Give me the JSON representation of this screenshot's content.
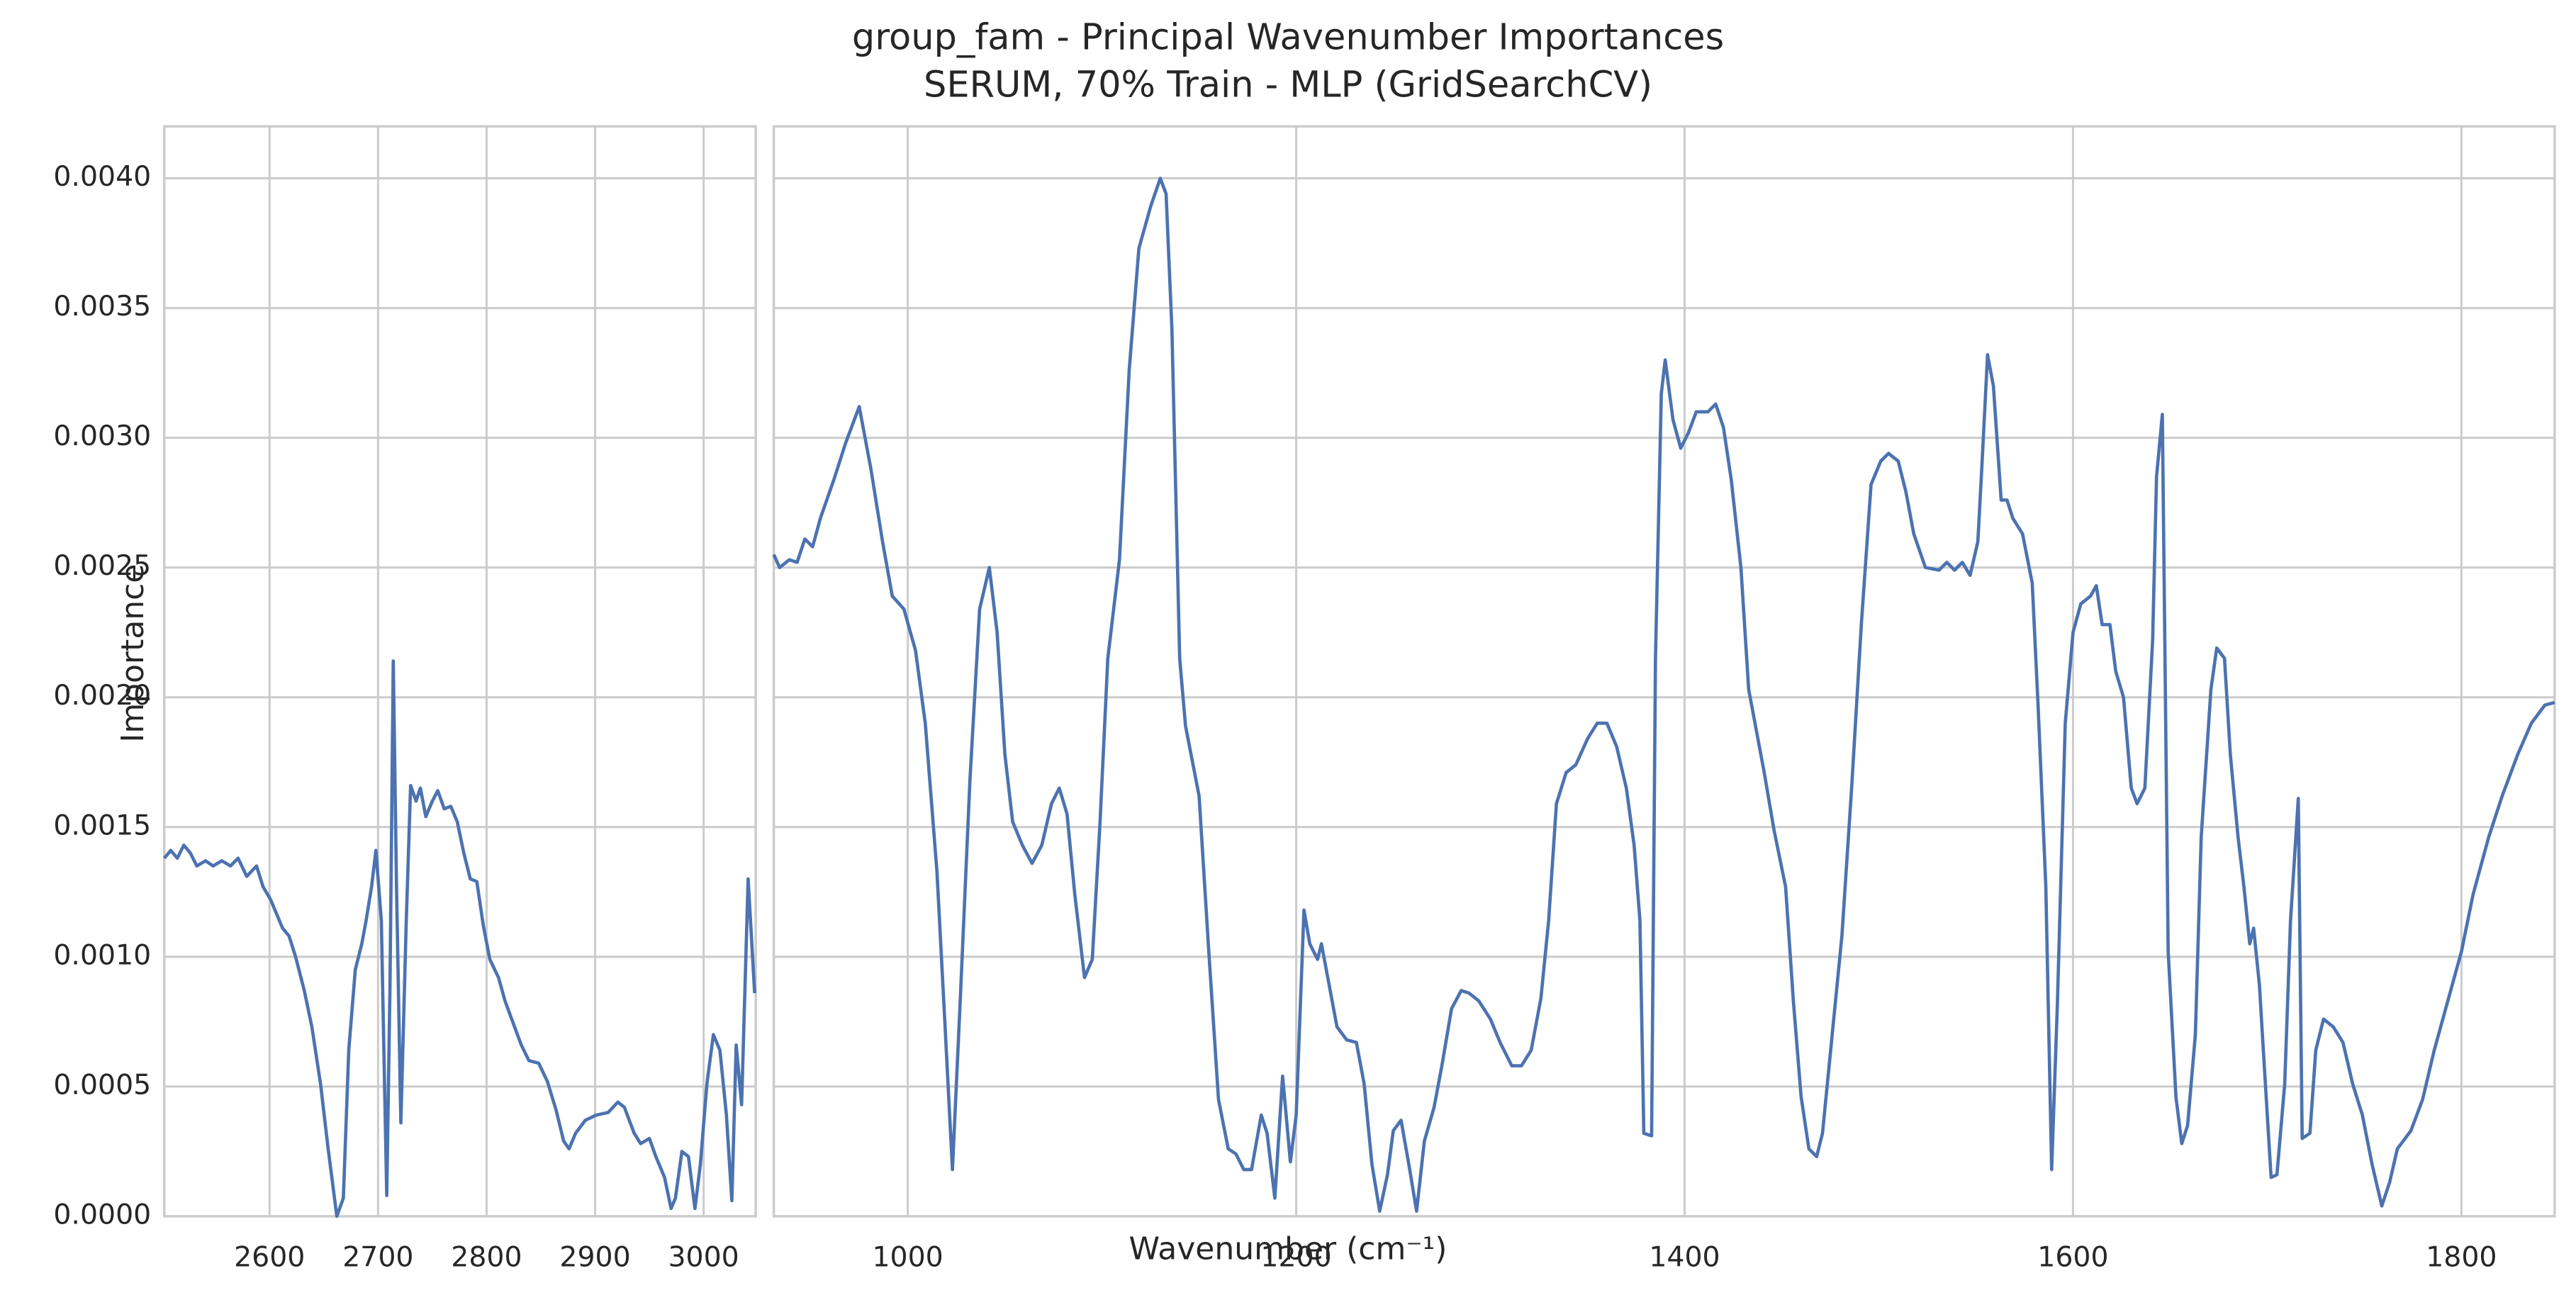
{
  "title": "group_fam - Principal Wavenumber Importances",
  "subtitle": "SERUM, 70% Train - MLP (GridSearchCV)",
  "xlabel": "Wavenumber (cm⁻¹)",
  "ylabel": "Importance",
  "chart_data": [
    {
      "type": "line",
      "color": "#4c72b0",
      "grid": true,
      "xlim": [
        2503,
        3048
      ],
      "xticks": [
        2600,
        2700,
        2800,
        2900,
        3000
      ],
      "ylim": [
        0,
        0.0042
      ],
      "yticks": [
        {
          "value": 0,
          "label": "0.0000"
        },
        {
          "value": 0.0005,
          "label": "0.0005"
        },
        {
          "value": 0.001,
          "label": "0.0010"
        },
        {
          "value": 0.0015,
          "label": "0.0015"
        },
        {
          "value": 0.002,
          "label": "0.0020"
        },
        {
          "value": 0.0025,
          "label": "0.0025"
        },
        {
          "value": 0.003,
          "label": "0.0030"
        },
        {
          "value": 0.0035,
          "label": "0.0035"
        },
        {
          "value": 0.004,
          "label": "0.0040"
        }
      ],
      "x": [
        2503,
        2509,
        2515,
        2521,
        2527,
        2533,
        2541,
        2548,
        2556,
        2564,
        2571,
        2579,
        2588,
        2594,
        2601,
        2612,
        2618,
        2624,
        2632,
        2639,
        2647,
        2654,
        2662,
        2668,
        2673,
        2679,
        2685,
        2689,
        2694,
        2698,
        2703,
        2708,
        2711,
        2714,
        2717,
        2721,
        2726,
        2730,
        2735,
        2739,
        2744,
        2750,
        2755,
        2761,
        2767,
        2773,
        2779,
        2785,
        2791,
        2797,
        2803,
        2811,
        2817,
        2824,
        2832,
        2839,
        2848,
        2856,
        2864,
        2871,
        2876,
        2882,
        2891,
        2901,
        2912,
        2921,
        2927,
        2936,
        2942,
        2950,
        2956,
        2964,
        2970,
        2974,
        2980,
        2986,
        2992,
        2997,
        3003,
        3009,
        3015,
        3021,
        3026,
        3030,
        3035,
        3041,
        3047
      ],
      "values": [
        0.00138,
        0.00141,
        0.00138,
        0.00143,
        0.0014,
        0.00135,
        0.00137,
        0.00135,
        0.00137,
        0.00135,
        0.00138,
        0.00131,
        0.00135,
        0.00127,
        0.00122,
        0.00111,
        0.00108,
        0.001,
        0.00087,
        0.00073,
        0.00051,
        0.00026,
        0,
        7e-05,
        0.00064,
        0.00095,
        0.00105,
        0.00114,
        0.00127,
        0.00141,
        0.00114,
        8e-05,
        0.00089,
        0.00214,
        0.00127,
        0.00036,
        0.00114,
        0.00166,
        0.0016,
        0.00165,
        0.00154,
        0.0016,
        0.00164,
        0.00157,
        0.00158,
        0.00152,
        0.0014,
        0.0013,
        0.00129,
        0.00112,
        0.00099,
        0.00092,
        0.00083,
        0.00075,
        0.00066,
        0.0006,
        0.00059,
        0.00052,
        0.00041,
        0.00029,
        0.00026,
        0.00032,
        0.00037,
        0.00039,
        0.0004,
        0.00044,
        0.00042,
        0.00032,
        0.00028,
        0.0003,
        0.00023,
        0.00015,
        3e-05,
        7e-05,
        0.00025,
        0.00023,
        3e-05,
        0.0002,
        0.00051,
        0.0007,
        0.00064,
        0.00039,
        6e-05,
        0.00066,
        0.00043,
        0.0013,
        0.00086
      ]
    },
    {
      "type": "line",
      "color": "#4c72b0",
      "grid": true,
      "xlim": [
        931,
        1848
      ],
      "xticks": [
        1000,
        1200,
        1400,
        1600,
        1800
      ],
      "ylim": [
        0,
        0.0042
      ],
      "yticks": [
        0,
        0.0005,
        0.001,
        0.0015,
        0.002,
        0.0025,
        0.003,
        0.0035,
        0.004
      ],
      "x": [
        931,
        934,
        939,
        943,
        947,
        951,
        955,
        962,
        968,
        975,
        981,
        987,
        992,
        998,
        1004,
        1009,
        1015,
        1019,
        1023,
        1027,
        1032,
        1037,
        1042,
        1046,
        1050,
        1054,
        1059,
        1064,
        1069,
        1074,
        1078,
        1082,
        1086,
        1091,
        1095,
        1099,
        1103,
        1109,
        1114,
        1119,
        1125,
        1130,
        1133,
        1136,
        1140,
        1143,
        1150,
        1155,
        1160,
        1165,
        1169,
        1173,
        1177,
        1182,
        1185,
        1189,
        1193,
        1197,
        1200,
        1204,
        1207,
        1211,
        1213,
        1217,
        1221,
        1226,
        1231,
        1235,
        1239,
        1243,
        1247,
        1250,
        1254,
        1258,
        1262,
        1266,
        1271,
        1275,
        1280,
        1285,
        1289,
        1294,
        1300,
        1305,
        1311,
        1316,
        1321,
        1326,
        1330,
        1334,
        1339,
        1344,
        1350,
        1355,
        1360,
        1365,
        1370,
        1374,
        1377,
        1379,
        1383,
        1385,
        1388,
        1390,
        1394,
        1398,
        1402,
        1406,
        1412,
        1416,
        1420,
        1424,
        1429,
        1433,
        1437,
        1441,
        1446,
        1452,
        1456,
        1460,
        1464,
        1468,
        1471,
        1476,
        1481,
        1486,
        1491,
        1496,
        1501,
        1505,
        1510,
        1514,
        1518,
        1524,
        1531,
        1535,
        1539,
        1543,
        1547,
        1551,
        1553,
        1556,
        1559,
        1563,
        1566,
        1569,
        1574,
        1579,
        1582,
        1586,
        1589,
        1592,
        1596,
        1600,
        1604,
        1609,
        1612,
        1615,
        1619,
        1622,
        1626,
        1630,
        1633,
        1637,
        1641,
        1643,
        1646,
        1649,
        1653,
        1656,
        1659,
        1663,
        1666,
        1671,
        1674,
        1678,
        1681,
        1685,
        1688,
        1691,
        1693,
        1696,
        1698,
        1702,
        1705,
        1709,
        1712,
        1716,
        1718,
        1722,
        1725,
        1729,
        1734,
        1739,
        1744,
        1749,
        1754,
        1759,
        1763,
        1767,
        1774,
        1780,
        1786,
        1793,
        1800,
        1806,
        1814,
        1821,
        1829,
        1836,
        1843,
        1848
      ],
      "values": [
        0.00255,
        0.0025,
        0.00253,
        0.00252,
        0.00261,
        0.00258,
        0.00269,
        0.00284,
        0.00298,
        0.00312,
        0.00288,
        0.0026,
        0.00239,
        0.00234,
        0.00218,
        0.0019,
        0.00133,
        0.00076,
        0.00018,
        0.00083,
        0.00168,
        0.00234,
        0.0025,
        0.00225,
        0.00178,
        0.00152,
        0.00143,
        0.00136,
        0.00143,
        0.00159,
        0.00165,
        0.00155,
        0.00124,
        0.00092,
        0.00099,
        0.00152,
        0.00215,
        0.00253,
        0.00326,
        0.00373,
        0.00389,
        0.004,
        0.00394,
        0.00342,
        0.00215,
        0.00189,
        0.00162,
        0.00102,
        0.00045,
        0.00026,
        0.00024,
        0.00018,
        0.00018,
        0.00039,
        0.00032,
        7e-05,
        0.00054,
        0.00021,
        0.00039,
        0.00118,
        0.00105,
        0.00099,
        0.00105,
        0.00089,
        0.00073,
        0.00068,
        0.00067,
        0.00051,
        0.0002,
        2e-05,
        0.00016,
        0.00033,
        0.00037,
        0.0002,
        2e-05,
        0.00029,
        0.00042,
        0.00058,
        0.0008,
        0.00087,
        0.00086,
        0.00083,
        0.00076,
        0.00067,
        0.00058,
        0.00058,
        0.00064,
        0.00084,
        0.00114,
        0.00159,
        0.00171,
        0.00174,
        0.00184,
        0.0019,
        0.0019,
        0.00181,
        0.00165,
        0.00143,
        0.00114,
        0.00032,
        0.00031,
        0.00215,
        0.00317,
        0.0033,
        0.00307,
        0.00296,
        0.00302,
        0.0031,
        0.0031,
        0.00313,
        0.00304,
        0.00284,
        0.0025,
        0.00203,
        0.00187,
        0.00171,
        0.00149,
        0.00127,
        0.00083,
        0.00046,
        0.00026,
        0.00023,
        0.00032,
        0.0007,
        0.00108,
        0.00165,
        0.00228,
        0.00282,
        0.00291,
        0.00294,
        0.00291,
        0.00279,
        0.00263,
        0.0025,
        0.00249,
        0.00252,
        0.00249,
        0.00252,
        0.00247,
        0.0026,
        0.00288,
        0.00332,
        0.0032,
        0.00276,
        0.00276,
        0.00269,
        0.00263,
        0.00244,
        0.00197,
        0.00127,
        0.00018,
        0.00083,
        0.0019,
        0.00225,
        0.00236,
        0.00239,
        0.00243,
        0.00228,
        0.00228,
        0.0021,
        0.002,
        0.00165,
        0.00159,
        0.00165,
        0.00222,
        0.00285,
        0.00309,
        0.00102,
        0.00046,
        0.00028,
        0.00035,
        0.0007,
        0.00146,
        0.00203,
        0.00219,
        0.00215,
        0.00178,
        0.00146,
        0.00127,
        0.00105,
        0.00111,
        0.00089,
        0.00064,
        0.00015,
        0.00016,
        0.00051,
        0.00114,
        0.00161,
        0.0003,
        0.00032,
        0.00064,
        0.00076,
        0.00073,
        0.00067,
        0.00051,
        0.00039,
        0.0002,
        4e-05,
        0.00013,
        0.00026,
        0.00033,
        0.00045,
        0.00064,
        0.00083,
        0.00102,
        0.00124,
        0.00146,
        0.00162,
        0.00178,
        0.0019,
        0.00197,
        0.00198
      ]
    }
  ]
}
